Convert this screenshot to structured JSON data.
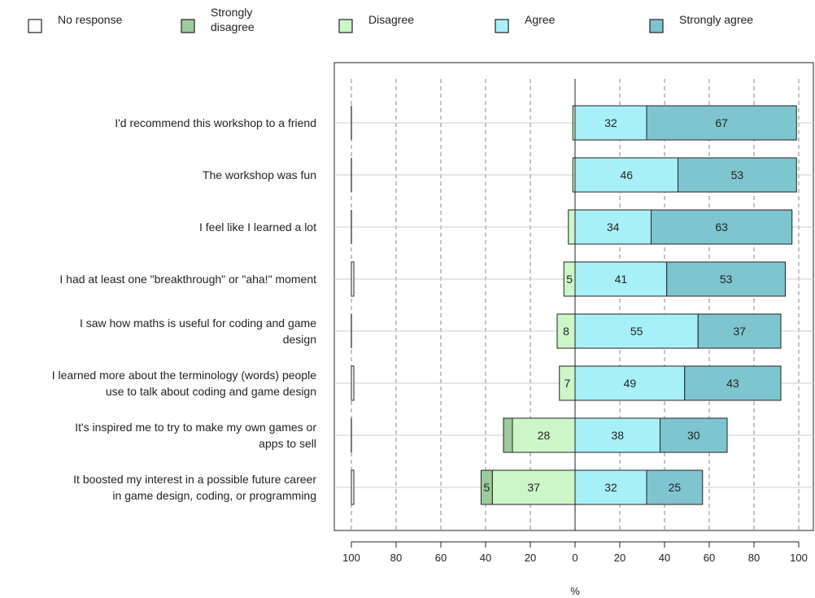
{
  "chart_data": {
    "type": "bar",
    "orientation": "horizontal",
    "stacking": "diverging",
    "xlabel": "%",
    "xlim": [
      -100,
      100
    ],
    "x_ticks": [
      -100,
      -80,
      -60,
      -40,
      -20,
      0,
      20,
      40,
      60,
      80,
      100
    ],
    "x_tick_labels": [
      "100",
      "80",
      "60",
      "40",
      "20",
      "0",
      "20",
      "40",
      "60",
      "80",
      "100"
    ],
    "grid": "vertical dashed",
    "legend_position": "top",
    "categories": [
      "I'd recommend this workshop to a friend",
      "The workshop was fun",
      "I feel like I learned a lot",
      "I had at least one \"breakthrough\" or \"aha!\" moment",
      "I saw how maths is useful for coding and game design",
      "I learned more about the terminology (words) people use to talk about coding and game design",
      "It's inspired me to try to make my own games or apps to sell",
      "It boosted my interest in a possible future career in game design, coding, or programming"
    ],
    "category_label_lines": [
      [
        "I'd recommend this workshop to a friend"
      ],
      [
        "The workshop was fun"
      ],
      [
        "I feel like I learned a lot"
      ],
      [
        "I had at least one \"breakthrough\" or \"aha!\" moment"
      ],
      [
        "I saw how maths is useful for coding and game",
        "design"
      ],
      [
        "I learned more about the terminology (words) people",
        "use to talk about coding and game design"
      ],
      [
        "It's inspired me to try to make my own games or",
        "apps to sell"
      ],
      [
        "It boosted my interest in a possible future career",
        "in game design, coding, or programming"
      ]
    ],
    "series": [
      {
        "name": "No response",
        "color": "#ffffff",
        "values": [
          0,
          0,
          0,
          1,
          0,
          1,
          0,
          1
        ],
        "side": "far-left"
      },
      {
        "name": "Strongly disagree",
        "color": "#9ecb9e",
        "values": [
          0,
          0,
          0,
          0,
          0,
          0,
          4,
          5
        ],
        "side": "negative"
      },
      {
        "name": "Disagree",
        "color": "#ccf5c8",
        "values": [
          1,
          1,
          3,
          5,
          8,
          7,
          28,
          37
        ],
        "side": "negative"
      },
      {
        "name": "Agree",
        "color": "#a8f0f8",
        "values": [
          32,
          46,
          34,
          41,
          55,
          49,
          38,
          32
        ],
        "side": "positive"
      },
      {
        "name": "Strongly agree",
        "color": "#7ec5d0",
        "values": [
          67,
          53,
          63,
          53,
          37,
          43,
          30,
          25
        ],
        "side": "positive"
      }
    ],
    "data_labels": [
      {
        "row": 0,
        "series": "Agree",
        "text": "32"
      },
      {
        "row": 0,
        "series": "Strongly agree",
        "text": "67"
      },
      {
        "row": 1,
        "series": "Agree",
        "text": "46"
      },
      {
        "row": 1,
        "series": "Strongly agree",
        "text": "53"
      },
      {
        "row": 2,
        "series": "Agree",
        "text": "34"
      },
      {
        "row": 2,
        "series": "Strongly agree",
        "text": "63"
      },
      {
        "row": 3,
        "series": "Disagree",
        "text": "5"
      },
      {
        "row": 3,
        "series": "Agree",
        "text": "41"
      },
      {
        "row": 3,
        "series": "Strongly agree",
        "text": "53"
      },
      {
        "row": 4,
        "series": "Disagree",
        "text": "8"
      },
      {
        "row": 4,
        "series": "Agree",
        "text": "55"
      },
      {
        "row": 4,
        "series": "Strongly agree",
        "text": "37"
      },
      {
        "row": 5,
        "series": "Disagree",
        "text": "7"
      },
      {
        "row": 5,
        "series": "Agree",
        "text": "49"
      },
      {
        "row": 5,
        "series": "Strongly agree",
        "text": "43"
      },
      {
        "row": 6,
        "series": "Disagree",
        "text": "28"
      },
      {
        "row": 6,
        "series": "Agree",
        "text": "38"
      },
      {
        "row": 6,
        "series": "Strongly agree",
        "text": "30"
      },
      {
        "row": 7,
        "series": "Strongly disagree",
        "text": "5"
      },
      {
        "row": 7,
        "series": "Disagree",
        "text": "37"
      },
      {
        "row": 7,
        "series": "Agree",
        "text": "32"
      },
      {
        "row": 7,
        "series": "Strongly agree",
        "text": "25"
      }
    ],
    "legend": [
      {
        "label_lines": [
          "No response"
        ],
        "color": "#ffffff"
      },
      {
        "label_lines": [
          "Strongly",
          "disagree"
        ],
        "color": "#9ecb9e"
      },
      {
        "label_lines": [
          "Disagree"
        ],
        "color": "#ccf5c8"
      },
      {
        "label_lines": [
          "Agree"
        ],
        "color": "#a8f0f8"
      },
      {
        "label_lines": [
          "Strongly agree"
        ],
        "color": "#7ec5d0"
      }
    ]
  }
}
